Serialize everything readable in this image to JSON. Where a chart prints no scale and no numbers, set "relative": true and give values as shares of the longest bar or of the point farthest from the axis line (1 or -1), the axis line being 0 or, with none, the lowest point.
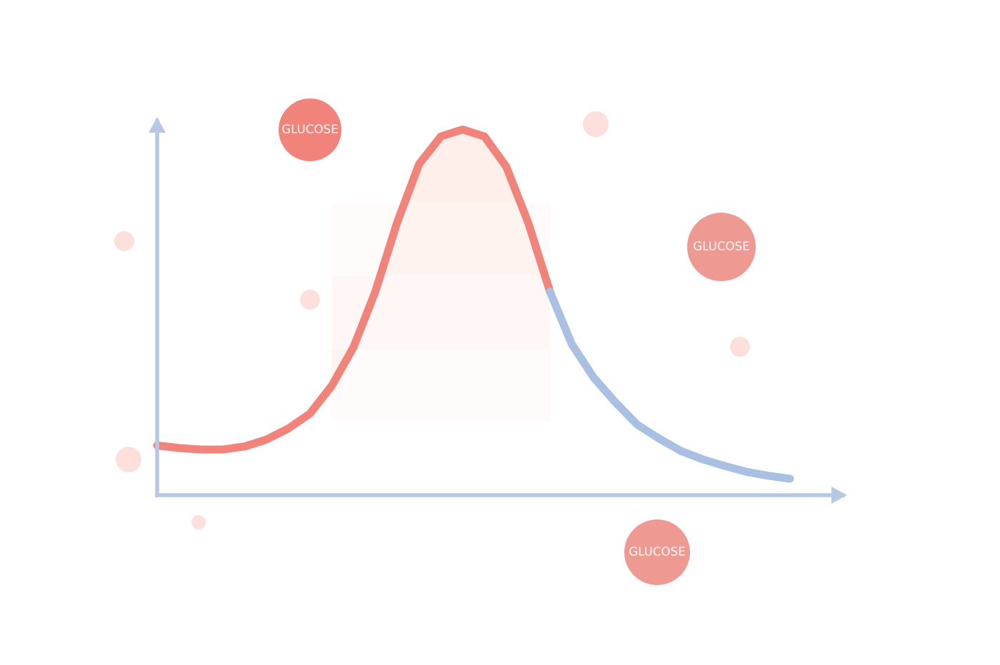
{
  "chart_data": {
    "type": "line",
    "relative": true,
    "categories": [
      null,
      null,
      null,
      null,
      null,
      null,
      null,
      null,
      null,
      null,
      null,
      null,
      null,
      null,
      null,
      null,
      null,
      null,
      null,
      null,
      null,
      null,
      null,
      null,
      null,
      null,
      null,
      null,
      null,
      null
    ],
    "series": [
      {
        "color": "#f2837b",
        "values": [
          0.136,
          0.129,
          0.125,
          0.125,
          0.133,
          0.152,
          0.182,
          0.223,
          0.299,
          0.405,
          0.557,
          0.746,
          0.905,
          0.981,
          1,
          0.981,
          0.898,
          0.746,
          0.557,
          null,
          null,
          null,
          null,
          null,
          null,
          null,
          null,
          null,
          null,
          null
        ]
      },
      {
        "color": "#a9c0e3",
        "values": [
          null,
          null,
          null,
          null,
          null,
          null,
          null,
          null,
          null,
          null,
          null,
          null,
          null,
          null,
          null,
          null,
          null,
          null,
          0.557,
          0.413,
          0.322,
          0.254,
          0.193,
          0.155,
          0.121,
          0.098,
          0.08,
          0.064,
          0.053,
          0.045
        ]
      }
    ],
    "annotations": [
      "GLUCOSE",
      "GLUCOSE",
      "GLUCOSE"
    ],
    "legend": false,
    "marker": "none",
    "line_style": "solid"
  }
}
